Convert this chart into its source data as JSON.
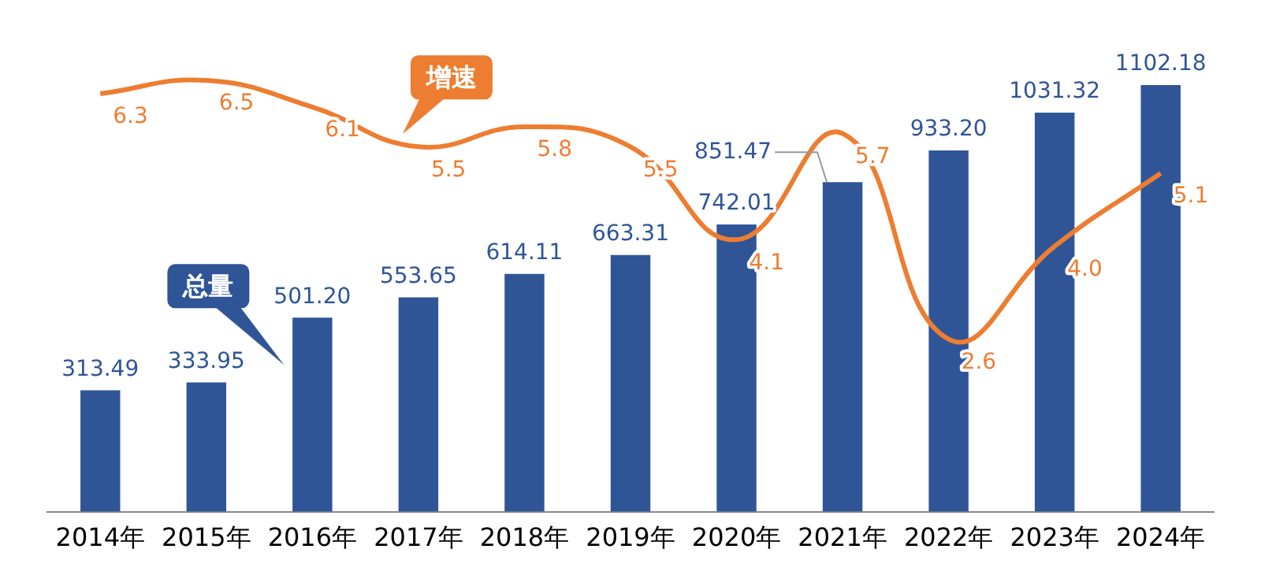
{
  "chart_data": {
    "type": "bar",
    "categories": [
      "2014年",
      "2015年",
      "2016年",
      "2017年",
      "2018年",
      "2019年",
      "2020年",
      "2021年",
      "2022年",
      "2023年",
      "2024年"
    ],
    "series": [
      {
        "name": "总量",
        "type": "bar",
        "color": "#2f5597",
        "values": [
          313.49,
          333.95,
          501.2,
          553.65,
          614.11,
          663.31,
          742.01,
          851.47,
          933.2,
          1031.32,
          1102.18
        ],
        "value_labels": [
          "313.49",
          "333.95",
          "501.20",
          "553.65",
          "614.11",
          "663.31",
          "742.01",
          "851.47",
          "933.20",
          "1031.32",
          "1102.18"
        ]
      },
      {
        "name": "增速",
        "type": "line",
        "axis": "y2",
        "color": "#ed7d31",
        "values": [
          6.3,
          6.5,
          6.1,
          5.5,
          5.8,
          5.5,
          4.1,
          5.7,
          2.6,
          4.0,
          5.1
        ],
        "value_labels": [
          "6.3",
          "6.5",
          "6.1",
          "5.5",
          "5.8",
          "5.5",
          "4.1",
          "5.7",
          "2.6",
          "4.0",
          "5.1"
        ]
      }
    ],
    "legend": false,
    "grid": false,
    "tick_labels": "x",
    "marker": "none"
  }
}
